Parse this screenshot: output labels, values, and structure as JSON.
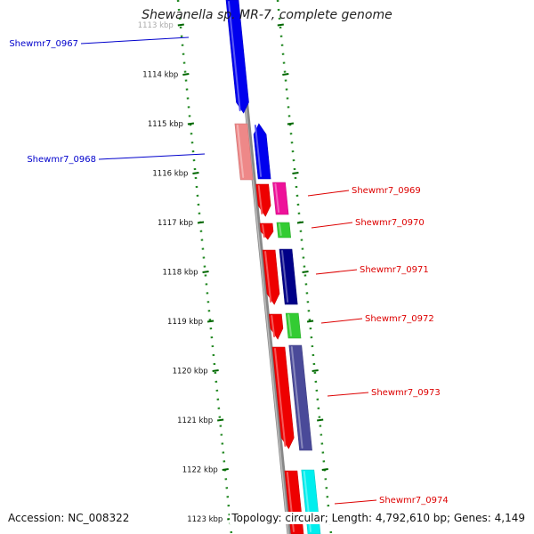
{
  "title": "Shewanella sp. MR-7, complete genome",
  "footer": {
    "accession": "Accession: NC_008322",
    "summary": "Topology: circular; Length: 4,792,610 bp; Genes: 4,149"
  },
  "ticks": [
    "1113 kbp",
    "1114 kbp",
    "1115 kbp",
    "1116 kbp",
    "1117 kbp",
    "1118 kbp",
    "1119 kbp",
    "1120 kbp",
    "1121 kbp",
    "1122 kbp",
    "1123 kbp"
  ],
  "genes": [
    {
      "label": "Shewmr7_0967",
      "label_color": "#0000cc",
      "colors": [
        "#0000ee"
      ]
    },
    {
      "label": "Shewmr7_0968",
      "label_color": "#0000cc",
      "colors": [
        "#ee8888",
        "#0000ee"
      ]
    },
    {
      "label": "Shewmr7_0969",
      "label_color": "#dd0000",
      "colors": [
        "#ee0000",
        "#ee1199"
      ]
    },
    {
      "label": "Shewmr7_0970",
      "label_color": "#dd0000",
      "colors": [
        "#ee0000",
        "#33cc33"
      ]
    },
    {
      "label": "Shewmr7_0971",
      "label_color": "#dd0000",
      "colors": [
        "#ee0000",
        "#000088"
      ]
    },
    {
      "label": "Shewmr7_0972",
      "label_color": "#dd0000",
      "colors": [
        "#ee0000",
        "#33cc33"
      ]
    },
    {
      "label": "Shewmr7_0973",
      "label_color": "#dd0000",
      "colors": [
        "#ee0000",
        "#4a4a99"
      ]
    },
    {
      "label": "Shewmr7_0974",
      "label_color": "#dd0000",
      "colors": [
        "#ee0000",
        "#00eeee"
      ]
    }
  ],
  "colors": {
    "backbone": "#888888",
    "dots": "#228822",
    "tick": "#006600"
  }
}
